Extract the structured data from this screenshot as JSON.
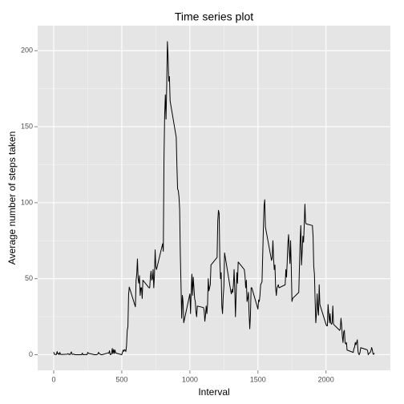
{
  "chart_data": {
    "type": "line",
    "title": "Time series plot",
    "x_label": "Interval",
    "y_label": "Average number of steps taken",
    "x": [
      0,
      5,
      10,
      15,
      20,
      25,
      30,
      35,
      40,
      45,
      50,
      55,
      100,
      105,
      110,
      115,
      120,
      125,
      130,
      135,
      140,
      145,
      150,
      155,
      200,
      205,
      210,
      215,
      220,
      225,
      230,
      235,
      240,
      245,
      250,
      255,
      300,
      305,
      310,
      315,
      320,
      325,
      330,
      335,
      340,
      345,
      350,
      355,
      400,
      405,
      410,
      415,
      420,
      425,
      430,
      435,
      440,
      445,
      450,
      455,
      500,
      505,
      510,
      515,
      520,
      525,
      530,
      535,
      540,
      545,
      550,
      555,
      600,
      605,
      610,
      615,
      620,
      625,
      630,
      635,
      640,
      645,
      650,
      655,
      700,
      705,
      710,
      715,
      720,
      725,
      730,
      735,
      740,
      745,
      750,
      755,
      800,
      805,
      810,
      815,
      820,
      825,
      830,
      835,
      840,
      845,
      850,
      855,
      900,
      905,
      910,
      915,
      920,
      925,
      930,
      935,
      940,
      945,
      950,
      955,
      1000,
      1005,
      1010,
      1015,
      1020,
      1025,
      1030,
      1035,
      1040,
      1045,
      1050,
      1055,
      1100,
      1105,
      1110,
      1115,
      1120,
      1125,
      1130,
      1135,
      1140,
      1145,
      1150,
      1155,
      1200,
      1205,
      1210,
      1215,
      1220,
      1225,
      1230,
      1235,
      1240,
      1245,
      1250,
      1255,
      1300,
      1305,
      1310,
      1315,
      1320,
      1325,
      1330,
      1335,
      1340,
      1345,
      1350,
      1355,
      1400,
      1405,
      1410,
      1415,
      1420,
      1425,
      1430,
      1435,
      1440,
      1445,
      1450,
      1455,
      1500,
      1505,
      1510,
      1515,
      1520,
      1525,
      1530,
      1535,
      1540,
      1545,
      1550,
      1555,
      1600,
      1605,
      1610,
      1615,
      1620,
      1625,
      1630,
      1635,
      1640,
      1645,
      1650,
      1655,
      1700,
      1705,
      1710,
      1715,
      1720,
      1725,
      1730,
      1735,
      1740,
      1745,
      1750,
      1755,
      1800,
      1805,
      1810,
      1815,
      1820,
      1825,
      1830,
      1835,
      1840,
      1845,
      1850,
      1855,
      1900,
      1905,
      1910,
      1915,
      1920,
      1925,
      1930,
      1935,
      1940,
      1945,
      1950,
      1955,
      2000,
      2005,
      2010,
      2015,
      2020,
      2025,
      2030,
      2035,
      2040,
      2045,
      2050,
      2055,
      2100,
      2105,
      2110,
      2115,
      2120,
      2125,
      2130,
      2135,
      2140,
      2145,
      2150,
      2155,
      2200,
      2205,
      2210,
      2215,
      2220,
      2225,
      2230,
      2235,
      2240,
      2245,
      2250,
      2255,
      2300,
      2305,
      2310,
      2315,
      2320,
      2325,
      2330,
      2335,
      2340,
      2345,
      2350,
      2355
    ],
    "series": [
      {
        "name": "steps",
        "color": "#000000",
        "values": [
          1.7,
          0.3,
          0.1,
          0.2,
          0.1,
          2.1,
          0.5,
          0.9,
          0,
          1.5,
          0.3,
          0.1,
          0.3,
          0.7,
          0.2,
          0.3,
          0,
          1.1,
          1.8,
          0.2,
          0.2,
          0.4,
          0.3,
          0,
          0,
          0,
          1.1,
          0,
          0,
          0.1,
          0,
          0.2,
          0,
          0,
          1.5,
          0.9,
          0,
          0,
          0,
          0,
          0.2,
          0.6,
          1.6,
          0.6,
          0.5,
          0.1,
          0,
          0,
          1.2,
          0.9,
          2.6,
          0,
          0.3,
          0.4,
          4.1,
          0.7,
          3.5,
          0.8,
          3.1,
          1.1,
          0,
          1.6,
          3,
          2.2,
          3.3,
          3,
          2.1,
          6.1,
          16,
          18.3,
          39.5,
          44.5,
          31.5,
          49,
          53,
          63,
          50,
          47,
          52,
          39,
          44,
          44,
          37,
          49,
          44,
          44,
          51,
          55,
          49,
          50,
          56,
          44,
          52,
          69,
          58,
          56,
          73,
          68,
          129,
          158,
          171,
          155,
          177,
          206,
          196,
          180,
          183,
          167,
          143,
          124,
          109,
          108,
          104,
          96,
          66,
          46,
          24,
          39,
          35,
          21,
          40,
          27,
          42,
          53,
          39,
          51,
          44,
          37,
          35,
          28,
          25,
          32,
          31,
          29,
          22,
          26,
          32,
          27,
          33,
          50,
          42,
          44,
          46,
          59,
          64,
          88,
          95,
          93,
          63,
          50,
          54,
          32,
          27,
          38,
          45,
          67,
          42,
          40,
          43,
          41,
          46,
          56,
          43,
          25,
          40,
          54,
          47,
          61,
          56,
          52,
          44,
          49,
          35,
          37,
          41,
          27,
          17,
          26,
          44,
          44,
          30,
          36,
          35,
          39,
          46,
          47,
          48,
          65,
          83,
          98,
          102,
          84,
          62,
          64,
          75,
          63,
          56,
          59,
          44,
          39,
          44,
          45,
          46,
          44,
          46,
          56,
          51,
          61,
          73,
          79,
          69,
          60,
          75,
          57,
          35,
          37,
          41,
          58,
          75,
          85,
          59,
          68,
          78,
          74,
          85,
          99,
          87,
          86,
          85,
          78,
          58,
          53,
          36,
          21,
          27,
          40,
          30,
          26,
          46,
          33,
          20,
          19,
          19,
          33,
          27,
          21,
          27,
          21,
          20,
          21,
          32,
          20,
          16,
          17,
          24,
          19,
          12,
          8,
          15,
          16,
          8,
          7,
          8,
          3,
          1.5,
          4,
          5,
          8,
          6.5,
          8,
          9.8,
          2.2,
          0.3,
          0.1,
          1.6,
          4.6,
          3.3,
          2.8,
          0,
          0.8,
          1,
          1.6,
          2.6,
          4.7,
          3.3,
          0.6,
          0.2,
          1.1
        ]
      }
    ],
    "xlim": [
      -117.75,
      2472.75
    ],
    "xticks": [
      0,
      500,
      1000,
      1500,
      2000
    ],
    "ylim": [
      -10.3,
      216.5
    ],
    "yticks": [
      0,
      50,
      100,
      150,
      200
    ],
    "grid": true
  }
}
